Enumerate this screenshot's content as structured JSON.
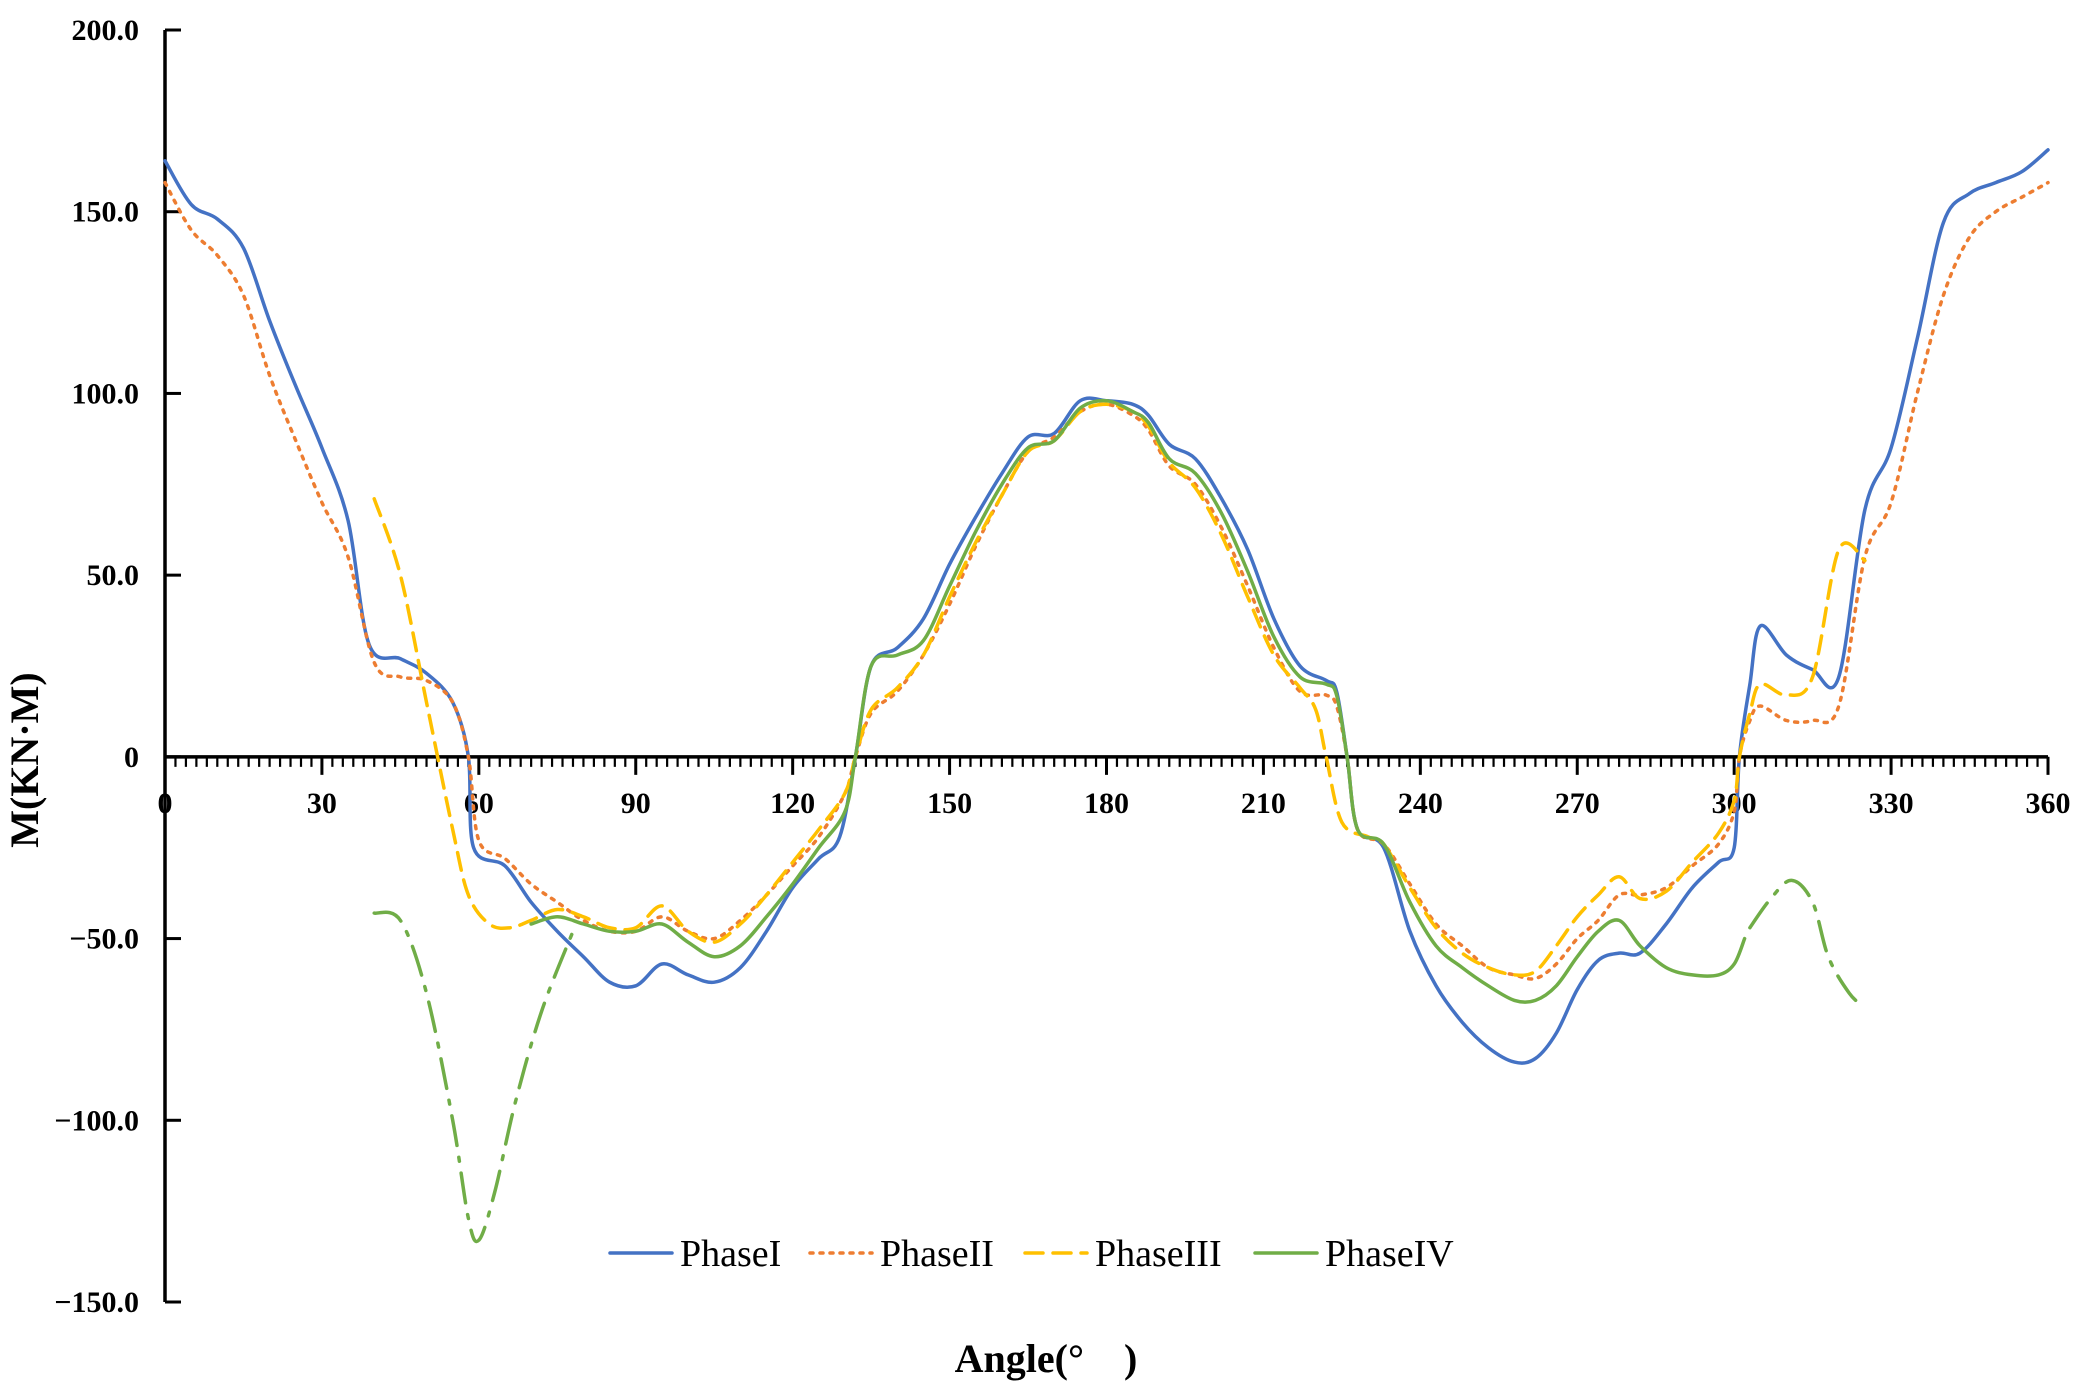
{
  "chart_data": {
    "type": "line",
    "xlabel": "Angle(°　)",
    "ylabel": "M(KN·M)",
    "xlim": [
      0,
      360
    ],
    "ylim": [
      -150,
      200
    ],
    "x_ticks": [
      0,
      30,
      60,
      90,
      120,
      150,
      180,
      210,
      240,
      270,
      300,
      330,
      360
    ],
    "y_ticks": [
      {
        "value": 200,
        "label": "200.0"
      },
      {
        "value": 150,
        "label": "150.0"
      },
      {
        "value": 100,
        "label": "100.0"
      },
      {
        "value": 50,
        "label": "50.0"
      },
      {
        "value": 0,
        "label": "0"
      },
      {
        "value": -50,
        "label": "−50.0"
      },
      {
        "value": -100,
        "label": "−100.0"
      },
      {
        "value": -150,
        "label": "−150.0"
      }
    ],
    "grid": false,
    "legend": "bottom-center",
    "series": [
      {
        "name": "PhaseI",
        "color": "#4472C4",
        "style": "solid",
        "points": [
          [
            0,
            164
          ],
          [
            5,
            152
          ],
          [
            10,
            148
          ],
          [
            15,
            140
          ],
          [
            20,
            120
          ],
          [
            25,
            102
          ],
          [
            30,
            85
          ],
          [
            35,
            65
          ],
          [
            39,
            31
          ],
          [
            45,
            27
          ],
          [
            50,
            23
          ],
          [
            55,
            15
          ],
          [
            58,
            0
          ],
          [
            59,
            -25
          ],
          [
            65,
            -30
          ],
          [
            70,
            -40
          ],
          [
            75,
            -48
          ],
          [
            80,
            -55
          ],
          [
            85,
            -62
          ],
          [
            90,
            -63
          ],
          [
            95,
            -57
          ],
          [
            100,
            -60
          ],
          [
            105,
            -62
          ],
          [
            110,
            -58
          ],
          [
            115,
            -48
          ],
          [
            120,
            -36
          ],
          [
            125,
            -28
          ],
          [
            129,
            -22
          ],
          [
            132,
            0
          ],
          [
            135,
            25
          ],
          [
            140,
            30
          ],
          [
            145,
            38
          ],
          [
            150,
            53
          ],
          [
            155,
            66
          ],
          [
            160,
            78
          ],
          [
            165,
            88
          ],
          [
            170,
            89
          ],
          [
            175,
            98
          ],
          [
            180,
            98
          ],
          [
            185,
            97
          ],
          [
            188,
            94
          ],
          [
            192,
            86
          ],
          [
            197,
            82
          ],
          [
            202,
            71
          ],
          [
            207,
            57
          ],
          [
            212,
            38
          ],
          [
            217,
            25
          ],
          [
            222,
            21
          ],
          [
            224,
            18
          ],
          [
            226,
            0
          ],
          [
            228,
            -20
          ],
          [
            233,
            -25
          ],
          [
            238,
            -48
          ],
          [
            243,
            -63
          ],
          [
            248,
            -73
          ],
          [
            253,
            -80
          ],
          [
            258,
            -84
          ],
          [
            262,
            -83
          ],
          [
            266,
            -76
          ],
          [
            270,
            -64
          ],
          [
            274,
            -56
          ],
          [
            278,
            -54
          ],
          [
            282,
            -54
          ],
          [
            287,
            -46
          ],
          [
            292,
            -36
          ],
          [
            297,
            -29
          ],
          [
            300,
            -25
          ],
          [
            301,
            0
          ],
          [
            303,
            20
          ],
          [
            305,
            36
          ],
          [
            310,
            28
          ],
          [
            315,
            24
          ],
          [
            320,
            22
          ],
          [
            325,
            68
          ],
          [
            330,
            85
          ],
          [
            335,
            115
          ],
          [
            340,
            147
          ],
          [
            345,
            155
          ],
          [
            350,
            158
          ],
          [
            355,
            161
          ],
          [
            360,
            167
          ]
        ]
      },
      {
        "name": "PhaseII",
        "color": "#ED7D31",
        "style": "dotted",
        "points": [
          [
            0,
            158
          ],
          [
            5,
            145
          ],
          [
            10,
            138
          ],
          [
            15,
            127
          ],
          [
            20,
            105
          ],
          [
            25,
            87
          ],
          [
            30,
            70
          ],
          [
            35,
            55
          ],
          [
            40,
            26
          ],
          [
            45,
            22
          ],
          [
            50,
            21
          ],
          [
            55,
            15
          ],
          [
            58,
            0
          ],
          [
            60,
            -23
          ],
          [
            65,
            -28
          ],
          [
            70,
            -35
          ],
          [
            75,
            -40
          ],
          [
            80,
            -45
          ],
          [
            85,
            -48
          ],
          [
            90,
            -48
          ],
          [
            95,
            -44
          ],
          [
            100,
            -48
          ],
          [
            105,
            -50
          ],
          [
            110,
            -45
          ],
          [
            115,
            -38
          ],
          [
            120,
            -30
          ],
          [
            125,
            -22
          ],
          [
            130,
            -10
          ],
          [
            132,
            0
          ],
          [
            135,
            12
          ],
          [
            140,
            18
          ],
          [
            145,
            28
          ],
          [
            150,
            42
          ],
          [
            155,
            58
          ],
          [
            160,
            72
          ],
          [
            165,
            84
          ],
          [
            170,
            88
          ],
          [
            175,
            95
          ],
          [
            180,
            97
          ],
          [
            185,
            94
          ],
          [
            188,
            90
          ],
          [
            192,
            80
          ],
          [
            197,
            75
          ],
          [
            202,
            63
          ],
          [
            207,
            47
          ],
          [
            212,
            30
          ],
          [
            217,
            18
          ],
          [
            222,
            17
          ],
          [
            224,
            14
          ],
          [
            226,
            0
          ],
          [
            228,
            -20
          ],
          [
            233,
            -24
          ],
          [
            238,
            -35
          ],
          [
            243,
            -46
          ],
          [
            248,
            -52
          ],
          [
            253,
            -58
          ],
          [
            258,
            -60
          ],
          [
            262,
            -61
          ],
          [
            266,
            -57
          ],
          [
            270,
            -50
          ],
          [
            274,
            -45
          ],
          [
            278,
            -38
          ],
          [
            282,
            -38
          ],
          [
            287,
            -36
          ],
          [
            292,
            -30
          ],
          [
            297,
            -24
          ],
          [
            300,
            -15
          ],
          [
            301,
            0
          ],
          [
            303,
            10
          ],
          [
            305,
            14
          ],
          [
            310,
            10
          ],
          [
            315,
            10
          ],
          [
            320,
            14
          ],
          [
            325,
            55
          ],
          [
            330,
            70
          ],
          [
            335,
            100
          ],
          [
            340,
            127
          ],
          [
            345,
            143
          ],
          [
            350,
            150
          ],
          [
            355,
            154
          ],
          [
            360,
            158
          ]
        ]
      },
      {
        "name": "PhaseIII",
        "color": "#FFC000",
        "style": "dashed",
        "points": [
          [
            40,
            71
          ],
          [
            45,
            50
          ],
          [
            50,
            15
          ],
          [
            55,
            -20
          ],
          [
            58,
            -38
          ],
          [
            62,
            -46
          ],
          [
            66,
            -47
          ],
          [
            70,
            -45
          ],
          [
            75,
            -42
          ],
          [
            80,
            -44
          ],
          [
            85,
            -47
          ],
          [
            90,
            -47
          ],
          [
            95,
            -41
          ],
          [
            100,
            -48
          ],
          [
            105,
            -51
          ],
          [
            110,
            -46
          ],
          [
            115,
            -38
          ],
          [
            120,
            -29
          ],
          [
            125,
            -20
          ],
          [
            130,
            -10
          ],
          [
            132,
            0
          ],
          [
            135,
            13
          ],
          [
            140,
            19
          ],
          [
            145,
            28
          ],
          [
            150,
            44
          ],
          [
            155,
            59
          ],
          [
            160,
            72
          ],
          [
            165,
            84
          ],
          [
            170,
            87
          ],
          [
            175,
            95
          ],
          [
            180,
            97
          ],
          [
            185,
            95
          ],
          [
            188,
            91
          ],
          [
            192,
            81
          ],
          [
            197,
            74
          ],
          [
            202,
            61
          ],
          [
            207,
            44
          ],
          [
            212,
            28
          ],
          [
            217,
            19
          ],
          [
            220,
            13
          ],
          [
            222,
            0
          ],
          [
            225,
            -18
          ],
          [
            230,
            -22
          ],
          [
            233,
            -24
          ],
          [
            238,
            -36
          ],
          [
            243,
            -47
          ],
          [
            248,
            -54
          ],
          [
            253,
            -58
          ],
          [
            258,
            -60
          ],
          [
            262,
            -59
          ],
          [
            266,
            -52
          ],
          [
            270,
            -44
          ],
          [
            274,
            -38
          ],
          [
            278,
            -33
          ],
          [
            282,
            -39
          ],
          [
            287,
            -37
          ],
          [
            292,
            -29
          ],
          [
            297,
            -21
          ],
          [
            300,
            -12
          ],
          [
            301,
            0
          ],
          [
            303,
            12
          ],
          [
            305,
            20
          ],
          [
            310,
            17
          ],
          [
            315,
            22
          ],
          [
            320,
            57
          ],
          [
            325,
            54
          ]
        ]
      },
      {
        "name": "PhaseIV",
        "color": "#70AD47",
        "style": "solid",
        "points": [
          [
            70,
            -46
          ],
          [
            75,
            -44
          ],
          [
            80,
            -46
          ],
          [
            85,
            -48
          ],
          [
            90,
            -48
          ],
          [
            95,
            -46
          ],
          [
            100,
            -51
          ],
          [
            105,
            -55
          ],
          [
            110,
            -52
          ],
          [
            115,
            -44
          ],
          [
            120,
            -35
          ],
          [
            125,
            -25
          ],
          [
            130,
            -15
          ],
          [
            132,
            0
          ],
          [
            135,
            25
          ],
          [
            140,
            28
          ],
          [
            145,
            32
          ],
          [
            150,
            47
          ],
          [
            155,
            62
          ],
          [
            160,
            75
          ],
          [
            165,
            85
          ],
          [
            170,
            87
          ],
          [
            175,
            96
          ],
          [
            180,
            98
          ],
          [
            185,
            95
          ],
          [
            188,
            92
          ],
          [
            192,
            82
          ],
          [
            197,
            78
          ],
          [
            202,
            67
          ],
          [
            207,
            51
          ],
          [
            212,
            33
          ],
          [
            217,
            22
          ],
          [
            222,
            20
          ],
          [
            224,
            17
          ],
          [
            226,
            0
          ],
          [
            228,
            -20
          ],
          [
            233,
            -24
          ],
          [
            238,
            -40
          ],
          [
            243,
            -52
          ],
          [
            248,
            -58
          ],
          [
            253,
            -63
          ],
          [
            258,
            -67
          ],
          [
            262,
            -67
          ],
          [
            266,
            -63
          ],
          [
            270,
            -55
          ],
          [
            274,
            -48
          ],
          [
            278,
            -45
          ],
          [
            282,
            -52
          ],
          [
            287,
            -58
          ],
          [
            292,
            -60
          ],
          [
            297,
            -60
          ],
          [
            300,
            -57
          ],
          [
            302,
            -50
          ]
        ]
      },
      {
        "name": "",
        "color": "#70AD47",
        "style": "dashdot",
        "points": [
          [
            40,
            -43
          ],
          [
            45,
            -45
          ],
          [
            50,
            -65
          ],
          [
            55,
            -100
          ],
          [
            58,
            -127
          ],
          [
            60,
            -133
          ],
          [
            63,
            -120
          ],
          [
            67,
            -95
          ],
          [
            72,
            -70
          ],
          [
            78,
            -48
          ]
        ]
      },
      {
        "name": "",
        "color": "#70AD47",
        "style": "dashdot",
        "points": [
          [
            303,
            -47
          ],
          [
            307,
            -39
          ],
          [
            311,
            -34
          ],
          [
            315,
            -40
          ],
          [
            318,
            -55
          ],
          [
            322,
            -65
          ],
          [
            325,
            -69
          ]
        ]
      }
    ]
  }
}
